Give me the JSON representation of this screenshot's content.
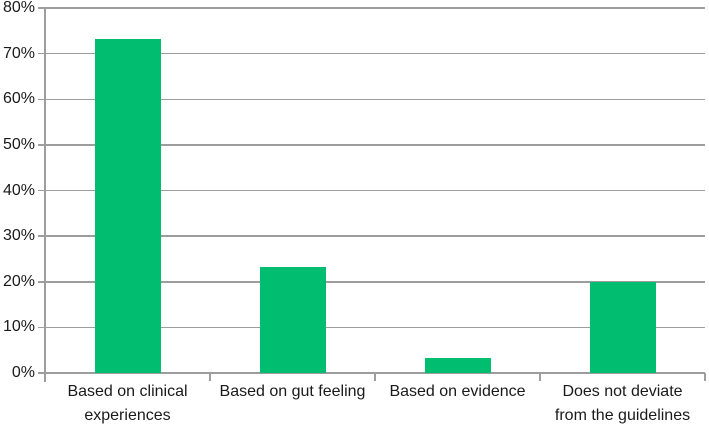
{
  "chart_data": {
    "type": "bar",
    "categories": [
      "Based on clinical\nexperiences",
      "Based on gut feeling",
      "Based on evidence",
      "Does not deviate\nfrom the guidelines"
    ],
    "values": [
      73.3,
      23.3,
      3.3,
      20
    ],
    "title": "",
    "xlabel": "",
    "ylabel": "",
    "ylim": [
      0,
      80
    ],
    "ytick_step": 10,
    "yticks": [
      "0%",
      "10%",
      "20%",
      "30%",
      "40%",
      "50%",
      "60%",
      "70%",
      "80%"
    ],
    "grid": true,
    "legend": false,
    "legend_position": "none",
    "bar_color": "#00bd70",
    "grid_color": "#9d9d9d",
    "axis_color": "#9d9d9d",
    "text_color": "#1a1a1a",
    "background": "#ffffff"
  }
}
